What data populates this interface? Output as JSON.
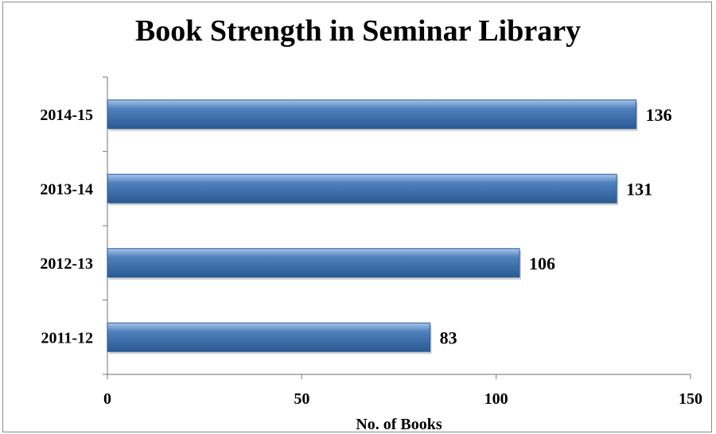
{
  "chart_data": {
    "type": "bar",
    "orientation": "horizontal",
    "title": "Book Strength in Seminar Library",
    "xlabel": "No. of Books",
    "ylabel": "",
    "categories": [
      "2011-12",
      "2012-13",
      "2013-14",
      "2014-15"
    ],
    "values": [
      83,
      106,
      131,
      136
    ],
    "xlim": [
      0,
      150
    ],
    "xticks": [
      0,
      50,
      100,
      150
    ],
    "data_labels": true,
    "legend": "none",
    "grid": false,
    "colors": {
      "bar": "#4f81bd",
      "bar_light": "#a9c5ea",
      "bar_dark": "#2a5a94",
      "axis": "#8a8a8a"
    }
  }
}
